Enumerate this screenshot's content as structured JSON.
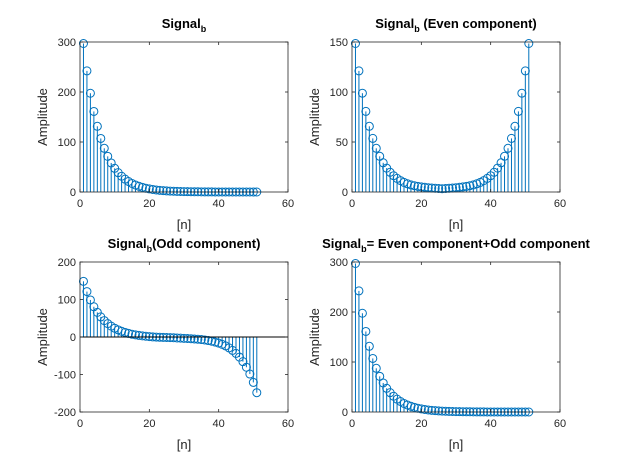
{
  "figure": {
    "colors": {
      "stem": "#0072BD",
      "axis": "#262626",
      "background": "#ffffff"
    }
  },
  "chart_data": [
    {
      "type": "stem",
      "title": {
        "base": "Signal",
        "sub": "b",
        "rest": ""
      },
      "xlabel": "[n]",
      "ylabel": "Amplitude",
      "xlim": [
        0,
        60
      ],
      "ylim": [
        0,
        300
      ],
      "xticks": [
        0,
        20,
        40,
        60
      ],
      "yticks": [
        0,
        100,
        200,
        300
      ],
      "x": [
        1,
        2,
        3,
        4,
        5,
        6,
        7,
        8,
        9,
        10,
        11,
        12,
        13,
        14,
        15,
        16,
        17,
        18,
        19,
        20,
        21,
        22,
        23,
        24,
        25,
        26,
        27,
        28,
        29,
        30,
        31,
        32,
        33,
        34,
        35,
        36,
        37,
        38,
        39,
        40,
        41,
        42,
        43,
        44,
        45,
        46,
        47,
        48,
        49,
        50,
        51
      ],
      "y": [
        297.0,
        242.2,
        197.5,
        161.1,
        131.4,
        107.1,
        87.4,
        71.3,
        58.1,
        47.4,
        38.7,
        31.5,
        25.7,
        21.0,
        17.1,
        14.0,
        11.4,
        9.3,
        7.6,
        6.2,
        5.0,
        4.1,
        3.3,
        2.7,
        2.2,
        1.8,
        1.5,
        1.2,
        1.0,
        0.8,
        0.7,
        0.6,
        0.4,
        0.4,
        0.3,
        0.2,
        0.2,
        0.2,
        0.1,
        0.1,
        0.1,
        0.1,
        0.1,
        0.0,
        0.0,
        0.0,
        0.0,
        0.0,
        0.0,
        0.0,
        0.0
      ]
    },
    {
      "type": "stem",
      "title": {
        "base": "Signal",
        "sub": "b",
        "rest": " (Even component)"
      },
      "xlabel": "[n]",
      "ylabel": "Amplitude",
      "xlim": [
        0,
        60
      ],
      "ylim": [
        0,
        150
      ],
      "xticks": [
        0,
        20,
        40,
        60
      ],
      "yticks": [
        0,
        50,
        100,
        150
      ],
      "x": [
        1,
        2,
        3,
        4,
        5,
        6,
        7,
        8,
        9,
        10,
        11,
        12,
        13,
        14,
        15,
        16,
        17,
        18,
        19,
        20,
        21,
        22,
        23,
        24,
        25,
        26,
        27,
        28,
        29,
        30,
        31,
        32,
        33,
        34,
        35,
        36,
        37,
        38,
        39,
        40,
        41,
        42,
        43,
        44,
        45,
        46,
        47,
        48,
        49,
        50,
        51
      ],
      "y": [
        148.5,
        121.1,
        98.8,
        80.6,
        65.7,
        53.6,
        43.7,
        35.7,
        29.2,
        23.9,
        19.7,
        16.3,
        13.6,
        11.4,
        9.6,
        8.2,
        7.1,
        6.3,
        5.6,
        5.1,
        4.7,
        4.3,
        4.0,
        3.8,
        3.5,
        3.3,
        3.5,
        3.8,
        4.0,
        4.3,
        4.7,
        5.1,
        5.6,
        6.3,
        7.1,
        8.2,
        9.6,
        11.4,
        13.6,
        16.3,
        19.7,
        23.9,
        29.2,
        35.7,
        43.7,
        53.6,
        65.7,
        80.6,
        98.8,
        121.1,
        148.5
      ]
    },
    {
      "type": "stem",
      "title": {
        "base": "Signal",
        "sub": "b",
        "rest": "(Odd component)"
      },
      "xlabel": "[n]",
      "ylabel": "Amplitude",
      "xlim": [
        0,
        60
      ],
      "ylim": [
        -200,
        200
      ],
      "xticks": [
        0,
        20,
        40,
        60
      ],
      "yticks": [
        -200,
        -100,
        0,
        100,
        200
      ],
      "x": [
        1,
        2,
        3,
        4,
        5,
        6,
        7,
        8,
        9,
        10,
        11,
        12,
        13,
        14,
        15,
        16,
        17,
        18,
        19,
        20,
        21,
        22,
        23,
        24,
        25,
        26,
        27,
        28,
        29,
        30,
        31,
        32,
        33,
        34,
        35,
        36,
        37,
        38,
        39,
        40,
        41,
        42,
        43,
        44,
        45,
        46,
        47,
        48,
        49,
        50,
        51
      ],
      "y": [
        148.5,
        121.1,
        98.8,
        80.6,
        65.7,
        53.6,
        43.7,
        35.7,
        29.0,
        23.5,
        19.1,
        15.2,
        12.1,
        9.6,
        7.5,
        5.8,
        4.3,
        3.0,
        2.0,
        1.1,
        0.3,
        -0.2,
        -0.7,
        -1.1,
        -1.3,
        -1.5,
        -1.9,
        -2.6,
        -3.0,
        -3.5,
        -4.0,
        -4.5,
        -5.2,
        -5.9,
        -6.8,
        -8.0,
        -9.4,
        -11.2,
        -13.5,
        -16.2,
        -19.6,
        -23.8,
        -29.1,
        -35.7,
        -43.7,
        -53.6,
        -65.7,
        -80.6,
        -98.8,
        -121.1,
        -148.5
      ]
    },
    {
      "type": "stem",
      "title": {
        "base": "Signal",
        "sub": "b",
        "rest": "= Even component+Odd component"
      },
      "xlabel": "[n]",
      "ylabel": "Amplitude",
      "xlim": [
        0,
        60
      ],
      "ylim": [
        0,
        300
      ],
      "xticks": [
        0,
        20,
        40,
        60
      ],
      "yticks": [
        0,
        100,
        200,
        300
      ],
      "x": [
        1,
        2,
        3,
        4,
        5,
        6,
        7,
        8,
        9,
        10,
        11,
        12,
        13,
        14,
        15,
        16,
        17,
        18,
        19,
        20,
        21,
        22,
        23,
        24,
        25,
        26,
        27,
        28,
        29,
        30,
        31,
        32,
        33,
        34,
        35,
        36,
        37,
        38,
        39,
        40,
        41,
        42,
        43,
        44,
        45,
        46,
        47,
        48,
        49,
        50,
        51
      ],
      "y": [
        297.0,
        242.2,
        197.5,
        161.1,
        131.4,
        107.1,
        87.4,
        71.3,
        58.1,
        47.4,
        38.7,
        31.5,
        25.7,
        21.0,
        17.1,
        14.0,
        11.4,
        9.3,
        7.6,
        6.2,
        5.0,
        4.1,
        3.3,
        2.7,
        2.2,
        1.8,
        1.5,
        1.2,
        1.0,
        0.8,
        0.7,
        0.6,
        0.4,
        0.4,
        0.3,
        0.2,
        0.2,
        0.2,
        0.1,
        0.1,
        0.1,
        0.1,
        0.1,
        0.0,
        0.0,
        0.0,
        0.0,
        0.0,
        0.0,
        0.0,
        0.0
      ]
    }
  ]
}
